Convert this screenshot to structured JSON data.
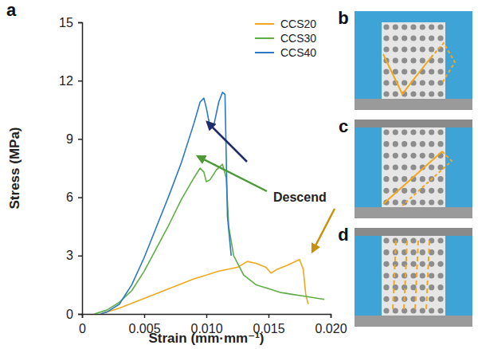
{
  "chart_data": {
    "type": "line",
    "panel_label": "a",
    "x_label": "Strain (mm·mm⁻¹)",
    "y_label": "Stress (MPa)",
    "xlim": [
      0,
      0.02
    ],
    "xticks": [
      0,
      0.005,
      {
        "value": 0.01,
        "label": "0.010"
      },
      0.015,
      {
        "value": 0.02,
        "label": "0.020"
      }
    ],
    "ylim": [
      0,
      15
    ],
    "yticks": [
      0,
      3,
      6,
      9,
      12,
      15
    ],
    "legend": "upper right",
    "annotations": [
      {
        "text": "Descend"
      }
    ],
    "series": [
      {
        "name": "CCS20",
        "color": "#f2a81d",
        "x": [
          0.0015,
          0.003,
          0.005,
          0.007,
          0.009,
          0.011,
          0.0125,
          0.0133,
          0.014,
          0.0148,
          0.0152,
          0.0157,
          0.0165,
          0.0175,
          0.0178,
          0.018,
          0.0182
        ],
        "values": [
          0,
          0.3,
          0.8,
          1.3,
          1.8,
          2.2,
          2.4,
          2.7,
          2.6,
          2.4,
          2.1,
          2.3,
          2.5,
          2.8,
          2.3,
          1.0,
          0.5
        ]
      },
      {
        "name": "CCS30",
        "color": "#5fae45",
        "x": [
          0.001,
          0.002,
          0.003,
          0.004,
          0.005,
          0.006,
          0.007,
          0.008,
          0.009,
          0.0095,
          0.0098,
          0.01,
          0.0103,
          0.0108,
          0.0113,
          0.0116,
          0.0118,
          0.0122,
          0.013,
          0.014,
          0.015,
          0.016,
          0.017,
          0.018,
          0.019,
          0.0195
        ],
        "values": [
          0,
          0.2,
          0.6,
          1.2,
          2.2,
          3.4,
          4.6,
          5.9,
          7.0,
          7.5,
          7.3,
          6.8,
          6.9,
          7.4,
          7.7,
          7.0,
          4.5,
          3.0,
          2.0,
          1.5,
          1.3,
          1.1,
          1.0,
          0.9,
          0.8,
          0.75
        ]
      },
      {
        "name": "CCS40",
        "color": "#2a78c6",
        "x": [
          0.0015,
          0.002,
          0.003,
          0.004,
          0.005,
          0.006,
          0.007,
          0.008,
          0.009,
          0.0095,
          0.0098,
          0.01,
          0.0103,
          0.0106,
          0.011,
          0.0113,
          0.0115,
          0.0117,
          0.012
        ],
        "values": [
          0,
          0.1,
          0.5,
          1.5,
          2.9,
          4.5,
          6.1,
          7.8,
          9.8,
          10.9,
          11.1,
          10.6,
          9.6,
          9.7,
          10.9,
          11.4,
          11.3,
          5.0,
          3.0
        ]
      }
    ]
  },
  "photo_panels": [
    {
      "label": "b"
    },
    {
      "label": "c"
    },
    {
      "label": "d"
    }
  ]
}
